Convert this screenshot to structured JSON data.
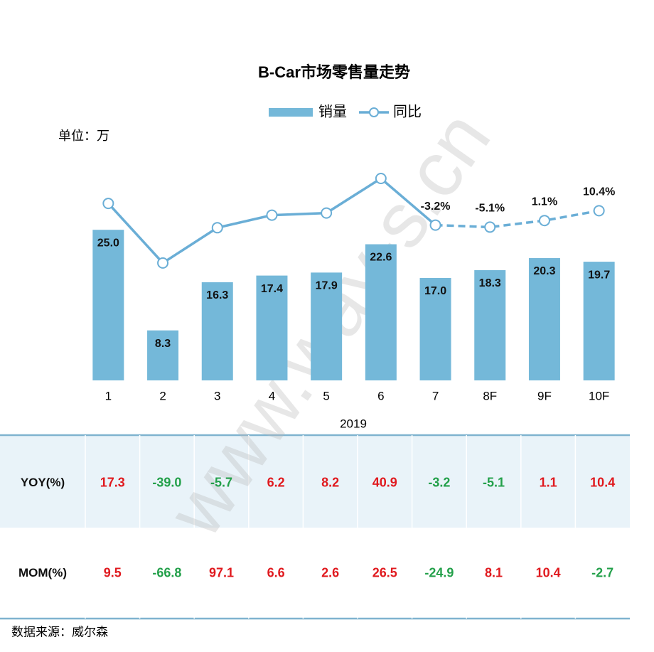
{
  "chart_data": {
    "type": "bar-line",
    "title": "B-Car市场零售量走势",
    "unit_label": "单位：万",
    "x_label": "2019",
    "categories": [
      "1",
      "2",
      "3",
      "4",
      "5",
      "6",
      "7",
      "8F",
      "9F",
      "10F"
    ],
    "ylim": [
      0,
      36
    ],
    "y2lim": [
      -150,
      55
    ],
    "series": [
      {
        "name": "销量",
        "color": "#74b8d9",
        "values": [
          25.0,
          8.3,
          16.3,
          17.4,
          17.9,
          22.6,
          17.0,
          18.3,
          20.3,
          19.7
        ],
        "value_labels": [
          "25.0",
          "8.3",
          "16.3",
          "17.4",
          "17.9",
          "22.6",
          "17.0",
          "18.3",
          "20.3",
          "19.7"
        ]
      },
      {
        "name": "同比",
        "color": "#6aaed6",
        "axis": "y2",
        "dashed_from": 6,
        "values": [
          17.3,
          -39.0,
          -5.7,
          6.2,
          8.2,
          40.9,
          -3.2,
          -5.1,
          1.1,
          10.4
        ],
        "value_labels": [
          null,
          null,
          null,
          null,
          null,
          null,
          "-3.2%",
          "-5.1%",
          "1.1%",
          "10.4%"
        ]
      }
    ]
  },
  "table": {
    "positive_color": "#e0191e",
    "negative_color": "#23a04a",
    "rows": [
      [
        "YOY(%)",
        "17.3",
        "-39.0",
        "-5.7",
        "6.2",
        "8.2",
        "40.9",
        "-3.2",
        "-5.1",
        "1.1",
        "10.4"
      ],
      [
        "MOM(%)",
        "9.5",
        "-66.8",
        "97.1",
        "6.6",
        "2.6",
        "26.5",
        "-24.9",
        "8.1",
        "10.4",
        "-2.7"
      ]
    ]
  },
  "source": "数据来源：威尔森",
  "watermark": "www.way-s.cn"
}
